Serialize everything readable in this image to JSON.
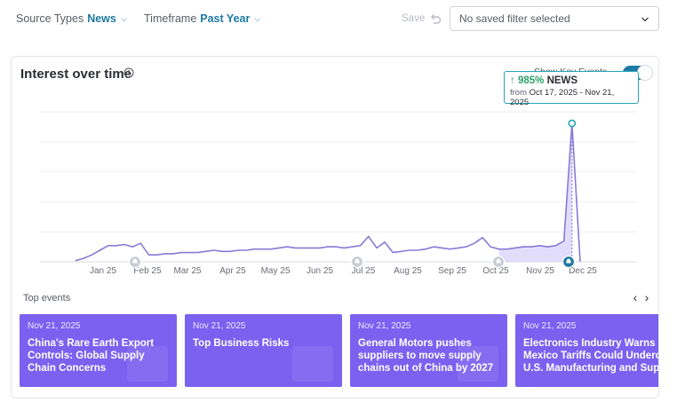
{
  "filters": {
    "source_types_label": "Source Types",
    "source_types_value": "News",
    "timeframe_label": "Timeframe",
    "timeframe_value": "Past Year",
    "save_label": "Save",
    "saved_filter_placeholder": "No saved filter selected"
  },
  "card": {
    "title": "Interest over time",
    "key_events_label": "Show Key Events"
  },
  "tooltip": {
    "change": "↑ 985%",
    "source": "NEWS",
    "from_label": "from",
    "range": "Oct 17, 2025 - Nov 21, 2025"
  },
  "chart_data": {
    "type": "line",
    "title": "",
    "xlabel": "",
    "ylabel": "",
    "x_ticks": [
      "Jan 25",
      "Feb 25",
      "Mar 25",
      "Apr 25",
      "May 25",
      "Jun 25",
      "Jul 25",
      "Aug 25",
      "Sep 25",
      "Oct 25",
      "Nov 25",
      "Dec 25"
    ],
    "grid": true,
    "series": [
      {
        "values": [
          1,
          3,
          6,
          10,
          14,
          14,
          15,
          13,
          16,
          6,
          6,
          7,
          7,
          8,
          8,
          8,
          9,
          10,
          9,
          9,
          10,
          10,
          11,
          11,
          11,
          12,
          13,
          12,
          12,
          12,
          12,
          13,
          13,
          12,
          13,
          14,
          22,
          12,
          17,
          8,
          9,
          10,
          10,
          11,
          13,
          12,
          11,
          12,
          13,
          16,
          21,
          13,
          11,
          11,
          12,
          13,
          13,
          14,
          13,
          14,
          18,
          120,
          0
        ]
      }
    ],
    "highlight_range": {
      "start": "Oct 17, 2025",
      "end": "Nov 21, 2025",
      "change_pct": 985
    },
    "key_event_markers": [
      "Feb 25",
      "Jul 25",
      "Oct 25",
      "Nov 21, 2025"
    ],
    "line_color": "#8b79d8",
    "fill_color": "#d9d1fb"
  },
  "top_events": {
    "label": "Top events",
    "items": [
      {
        "date": "Nov 21, 2025",
        "headline": "China's Rare Earth Export Controls: Global Supply Chain Concerns"
      },
      {
        "date": "Nov 21, 2025",
        "headline": "Top Business Risks"
      },
      {
        "date": "Nov 21, 2025",
        "headline": "General Motors pushes suppliers to move supply chains out of China by 2027"
      },
      {
        "date": "Nov 21, 2025",
        "headline": "Electronics Industry Warns Mexico Tariffs Could Undercut U.S. Manufacturing and Supply"
      }
    ]
  },
  "colors": {
    "accent": "#1f7aa3",
    "event_card": "#7b61f0",
    "tooltip_border": "#27a5b8",
    "increase": "#2ca06b"
  }
}
